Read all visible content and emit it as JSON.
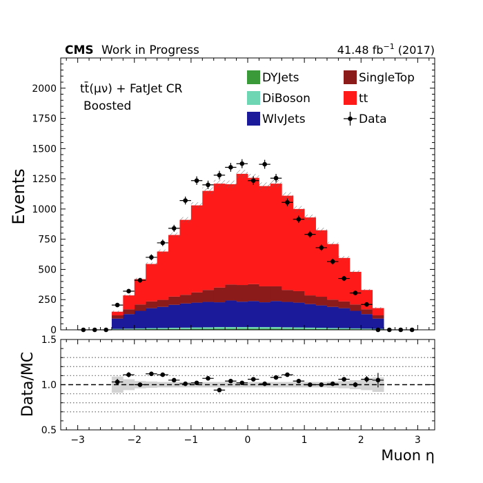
{
  "header": {
    "experiment": "CMS",
    "status": "Work in Progress",
    "lumi_prefix": "41.48 fb",
    "lumi_exp": "−1",
    "lumi_suffix": " (2017)"
  },
  "annotations": {
    "region_line1": "tt̄(μν) + FatJet CR",
    "region_line2": "Boosted"
  },
  "legend": {
    "placement": "top-right",
    "entries": [
      {
        "label": "DYJets",
        "color": "#3a9a3a",
        "kind": "box"
      },
      {
        "label": "SingleTop",
        "color": "#8b1a1a",
        "kind": "box"
      },
      {
        "label": "DiBoson",
        "color": "#6fd6b4",
        "kind": "box"
      },
      {
        "label": "tt",
        "color": "#ff1a1a",
        "kind": "box"
      },
      {
        "label": "WlvJets",
        "color": "#1a1a9a",
        "kind": "box"
      },
      {
        "label": "Data",
        "color": "#000000",
        "kind": "marker"
      }
    ]
  },
  "chart_data": [
    {
      "type": "area",
      "stacked": true,
      "xlim": [
        -3.3,
        3.3
      ],
      "ylim": [
        0,
        2250
      ],
      "ylabel": "Events",
      "yticks": [
        0,
        250,
        500,
        750,
        1000,
        1250,
        1500,
        1750,
        2000
      ],
      "bin_edges": [
        -2.4,
        -2.2,
        -2.0,
        -1.8,
        -1.6,
        -1.4,
        -1.2,
        -1.0,
        -0.8,
        -0.6,
        -0.4,
        -0.2,
        0.0,
        0.2,
        0.4,
        0.6,
        0.8,
        1.0,
        1.2,
        1.4,
        1.6,
        1.8,
        2.0,
        2.2,
        2.4
      ],
      "series": [
        {
          "name": "DYJets",
          "color": "#3a9a3a",
          "values": [
            3,
            4,
            5,
            6,
            6,
            7,
            7,
            8,
            8,
            9,
            9,
            9,
            9,
            9,
            9,
            8,
            8,
            7,
            7,
            6,
            6,
            5,
            4,
            3
          ]
        },
        {
          "name": "DiBoson",
          "color": "#6fd6b4",
          "values": [
            5,
            6,
            7,
            8,
            9,
            10,
            11,
            12,
            13,
            14,
            14,
            14,
            14,
            14,
            14,
            13,
            12,
            11,
            10,
            9,
            8,
            7,
            6,
            5
          ]
        },
        {
          "name": "WlvJets",
          "color": "#1a1a9a",
          "values": [
            85,
            120,
            145,
            165,
            175,
            190,
            200,
            205,
            210,
            205,
            220,
            210,
            215,
            205,
            215,
            210,
            205,
            195,
            185,
            175,
            165,
            145,
            120,
            85
          ]
        },
        {
          "name": "SingleTop",
          "color": "#8b1a1a",
          "values": [
            27,
            40,
            53,
            56,
            58,
            68,
            72,
            85,
            99,
            122,
            132,
            138,
            140,
            132,
            122,
            99,
            95,
            72,
            72,
            60,
            56,
            53,
            40,
            27
          ]
        },
        {
          "name": "tt",
          "color": "#ff1a1a",
          "values": [
            30,
            115,
            210,
            310,
            400,
            510,
            620,
            720,
            820,
            860,
            830,
            920,
            880,
            830,
            850,
            780,
            680,
            645,
            550,
            460,
            360,
            270,
            160,
            60
          ]
        }
      ],
      "data_points": {
        "name": "Data",
        "x": [
          -2.9,
          -2.7,
          -2.5,
          -2.3,
          -2.1,
          -1.9,
          -1.7,
          -1.5,
          -1.3,
          -1.1,
          -0.9,
          -0.7,
          -0.5,
          -0.3,
          -0.1,
          0.1,
          0.3,
          0.5,
          0.7,
          0.9,
          1.1,
          1.3,
          1.5,
          1.7,
          1.9,
          2.1,
          2.3,
          2.5,
          2.7,
          2.9
        ],
        "y": [
          0,
          0,
          0,
          205,
          320,
          410,
          600,
          720,
          840,
          1070,
          1235,
          1200,
          1280,
          1345,
          1375,
          1235,
          1370,
          1255,
          1055,
          915,
          790,
          680,
          565,
          425,
          305,
          210,
          0,
          0,
          0,
          0
        ],
        "xerr": 0.1
      },
      "uncertainty_band": "hatched"
    },
    {
      "type": "scatter",
      "xlabel": "Muon η",
      "ylabel": "Data/MC",
      "xlim": [
        -3.3,
        3.3
      ],
      "ylim": [
        0.5,
        1.5
      ],
      "xticks": [
        -3,
        -2,
        -1,
        0,
        1,
        2,
        3
      ],
      "yticks": [
        0.5,
        1.0,
        1.5
      ],
      "reference_line": 1.0,
      "gridlines_y": [
        0.7,
        0.8,
        0.9,
        1.1,
        1.2,
        1.3
      ],
      "x": [
        -2.3,
        -2.1,
        -1.9,
        -1.7,
        -1.5,
        -1.3,
        -1.1,
        -0.9,
        -0.7,
        -0.5,
        -0.3,
        -0.1,
        0.1,
        0.3,
        0.5,
        0.7,
        0.9,
        1.1,
        1.3,
        1.5,
        1.7,
        1.9,
        2.1,
        2.3
      ],
      "y": [
        1.03,
        1.11,
        1.0,
        1.12,
        1.11,
        1.05,
        1.01,
        1.02,
        1.07,
        0.94,
        1.04,
        1.02,
        1.06,
        1.01,
        1.08,
        1.11,
        1.04,
        1.0,
        1.0,
        1.01,
        1.06,
        1.0,
        1.06,
        1.05
      ],
      "band_halfwidth": [
        0.09,
        0.06,
        0.04,
        0.035,
        0.03,
        0.03,
        0.03,
        0.03,
        0.03,
        0.03,
        0.03,
        0.03,
        0.03,
        0.03,
        0.03,
        0.03,
        0.03,
        0.03,
        0.03,
        0.035,
        0.04,
        0.05,
        0.06,
        0.08
      ]
    }
  ]
}
